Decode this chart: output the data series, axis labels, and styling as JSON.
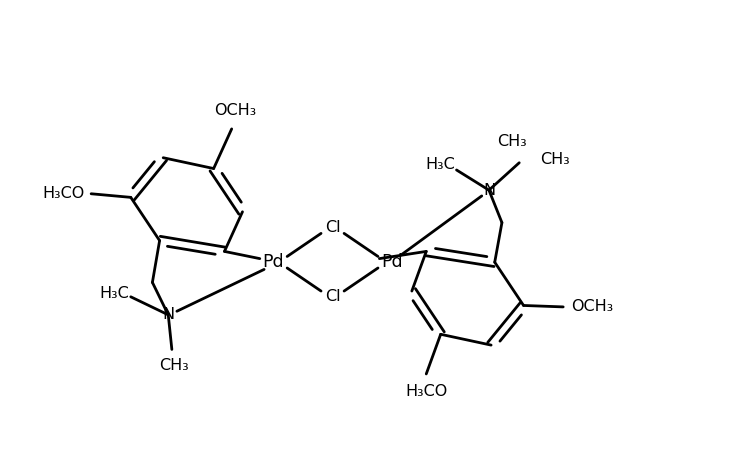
{
  "background": "#ffffff",
  "line_color": "#000000",
  "line_width": 2.0,
  "font_size": 11.5,
  "fig_width": 7.3,
  "fig_height": 4.74,
  "dpi": 100,
  "xlim": [
    0,
    10
  ],
  "ylim": [
    0,
    6.5
  ]
}
